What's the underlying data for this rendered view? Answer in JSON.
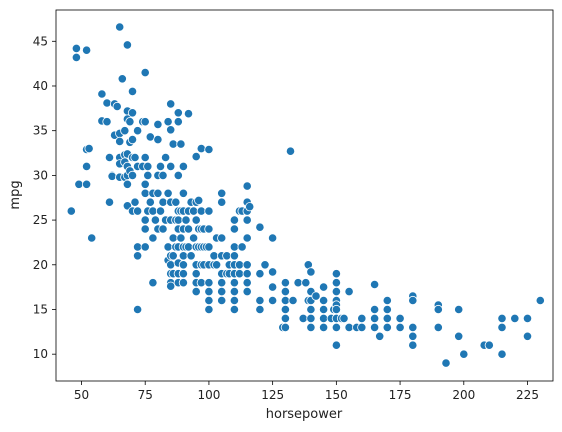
{
  "chart_data": {
    "type": "scatter",
    "title": "",
    "xlabel": "horsepower",
    "ylabel": "mpg",
    "xlim": [
      40,
      235
    ],
    "ylim": [
      7,
      48.5
    ],
    "xticks": [
      50,
      75,
      100,
      125,
      150,
      175,
      200,
      225
    ],
    "yticks": [
      10,
      15,
      20,
      25,
      30,
      35,
      40,
      45
    ],
    "grid": false,
    "point_color": "#1f77b4",
    "points": [
      [
        46,
        26
      ],
      [
        48,
        44.2
      ],
      [
        48,
        43.2
      ],
      [
        49,
        29
      ],
      [
        52,
        44
      ],
      [
        52,
        32.9
      ],
      [
        52,
        31
      ],
      [
        52,
        29
      ],
      [
        53,
        33
      ],
      [
        54,
        23
      ],
      [
        58,
        39.1
      ],
      [
        58,
        36.1
      ],
      [
        60,
        38.1
      ],
      [
        60,
        36
      ],
      [
        61,
        32
      ],
      [
        61,
        27
      ],
      [
        62,
        30
      ],
      [
        62,
        29.9
      ],
      [
        63,
        38
      ],
      [
        63,
        34.5
      ],
      [
        64,
        37.7
      ],
      [
        65,
        46.6
      ],
      [
        65,
        34.7
      ],
      [
        65,
        33.8
      ],
      [
        65,
        32
      ],
      [
        65,
        31.3
      ],
      [
        65,
        29.8
      ],
      [
        66,
        40.8
      ],
      [
        67,
        35
      ],
      [
        67,
        32.3
      ],
      [
        67,
        31.5
      ],
      [
        67,
        29.8
      ],
      [
        68,
        44.6
      ],
      [
        68,
        37.2
      ],
      [
        68,
        36.3
      ],
      [
        68,
        32.4
      ],
      [
        68,
        31
      ],
      [
        68,
        30
      ],
      [
        68,
        29
      ],
      [
        68,
        26.6
      ],
      [
        69,
        36
      ],
      [
        69,
        33.7
      ],
      [
        69,
        30.5
      ],
      [
        70,
        39.4
      ],
      [
        70,
        37
      ],
      [
        70,
        34
      ],
      [
        70,
        32
      ],
      [
        70,
        30
      ],
      [
        70,
        26
      ],
      [
        71,
        32
      ],
      [
        71,
        27
      ],
      [
        72,
        35
      ],
      [
        72,
        31
      ],
      [
        72,
        26
      ],
      [
        72,
        22
      ],
      [
        72,
        21
      ],
      [
        72,
        15
      ],
      [
        74,
        36
      ],
      [
        74,
        31
      ],
      [
        75,
        41.5
      ],
      [
        75,
        36
      ],
      [
        75,
        32
      ],
      [
        75,
        29
      ],
      [
        75,
        28
      ],
      [
        75,
        25
      ],
      [
        75,
        24
      ],
      [
        75,
        22
      ],
      [
        76,
        31
      ],
      [
        76,
        30
      ],
      [
        76,
        26
      ],
      [
        77,
        34.3
      ],
      [
        77,
        27
      ],
      [
        78,
        28
      ],
      [
        78,
        26
      ],
      [
        78,
        23
      ],
      [
        78,
        18
      ],
      [
        79,
        25
      ],
      [
        80,
        35.7
      ],
      [
        80,
        34
      ],
      [
        80,
        30
      ],
      [
        80,
        28
      ],
      [
        80,
        24
      ],
      [
        81,
        31
      ],
      [
        81,
        26
      ],
      [
        82,
        30
      ],
      [
        82,
        27
      ],
      [
        82,
        24
      ],
      [
        83,
        32
      ],
      [
        83,
        25
      ],
      [
        84,
        36
      ],
      [
        84,
        28
      ],
      [
        84,
        22
      ],
      [
        84,
        20.5
      ],
      [
        85,
        38
      ],
      [
        85,
        35.1
      ],
      [
        85,
        31
      ],
      [
        85,
        27
      ],
      [
        85,
        25
      ],
      [
        85,
        21
      ],
      [
        85,
        20
      ],
      [
        85,
        19
      ],
      [
        85,
        18
      ],
      [
        85,
        17.6
      ],
      [
        86,
        33.5
      ],
      [
        86,
        23
      ],
      [
        86,
        21
      ],
      [
        86,
        19
      ],
      [
        87,
        27
      ],
      [
        87,
        25
      ],
      [
        87,
        22
      ],
      [
        88,
        37
      ],
      [
        88,
        36
      ],
      [
        88,
        30
      ],
      [
        88,
        26
      ],
      [
        88,
        25
      ],
      [
        88,
        24
      ],
      [
        88,
        22
      ],
      [
        88,
        20.2
      ],
      [
        88,
        19
      ],
      [
        88,
        18
      ],
      [
        89,
        33.5
      ],
      [
        89,
        26
      ],
      [
        89,
        23
      ],
      [
        90,
        31
      ],
      [
        90,
        28
      ],
      [
        90,
        26
      ],
      [
        90,
        24
      ],
      [
        90,
        22
      ],
      [
        90,
        21
      ],
      [
        90,
        20
      ],
      [
        90,
        19
      ],
      [
        90,
        18
      ],
      [
        91,
        25
      ],
      [
        91,
        22
      ],
      [
        92,
        36.9
      ],
      [
        92,
        26
      ],
      [
        92,
        24
      ],
      [
        92,
        22
      ],
      [
        93,
        27
      ],
      [
        93,
        21
      ],
      [
        94,
        26
      ],
      [
        94,
        23
      ],
      [
        95,
        32.1
      ],
      [
        95,
        27
      ],
      [
        95,
        25
      ],
      [
        95,
        22
      ],
      [
        95,
        20
      ],
      [
        95,
        19
      ],
      [
        95,
        18
      ],
      [
        95,
        17
      ],
      [
        96,
        27.2
      ],
      [
        96,
        24
      ],
      [
        96,
        22
      ],
      [
        97,
        33
      ],
      [
        97,
        26
      ],
      [
        97,
        24
      ],
      [
        97,
        22
      ],
      [
        97,
        20
      ],
      [
        97,
        18
      ],
      [
        98,
        24
      ],
      [
        98,
        22
      ],
      [
        98,
        20
      ],
      [
        99,
        22
      ],
      [
        100,
        32.9
      ],
      [
        100,
        26
      ],
      [
        100,
        24
      ],
      [
        100,
        22
      ],
      [
        100,
        20
      ],
      [
        100,
        18
      ],
      [
        100,
        17
      ],
      [
        100,
        16
      ],
      [
        100,
        15
      ],
      [
        102,
        21
      ],
      [
        102,
        20
      ],
      [
        103,
        23
      ],
      [
        103,
        20
      ],
      [
        105,
        28
      ],
      [
        105,
        27
      ],
      [
        105,
        23
      ],
      [
        105,
        21
      ],
      [
        105,
        19
      ],
      [
        105,
        18
      ],
      [
        105,
        17
      ],
      [
        105,
        16
      ],
      [
        107,
        21
      ],
      [
        107,
        19
      ],
      [
        108,
        20
      ],
      [
        108,
        19
      ],
      [
        110,
        25
      ],
      [
        110,
        24
      ],
      [
        110,
        22
      ],
      [
        110,
        21
      ],
      [
        110,
        20
      ],
      [
        110,
        19
      ],
      [
        110,
        18
      ],
      [
        110,
        17
      ],
      [
        110,
        16
      ],
      [
        110,
        15
      ],
      [
        112,
        26
      ],
      [
        112,
        20
      ],
      [
        112,
        19
      ],
      [
        113,
        26
      ],
      [
        113,
        22
      ],
      [
        115,
        27
      ],
      [
        115,
        28.8
      ],
      [
        115,
        26
      ],
      [
        115,
        25
      ],
      [
        115,
        23
      ],
      [
        115,
        20
      ],
      [
        115,
        19
      ],
      [
        115,
        18
      ],
      [
        115,
        17
      ],
      [
        116,
        26.5
      ],
      [
        120,
        24.2
      ],
      [
        120,
        19
      ],
      [
        120,
        16
      ],
      [
        120,
        15
      ],
      [
        122,
        20
      ],
      [
        125,
        23
      ],
      [
        125,
        19.2
      ],
      [
        125,
        17.5
      ],
      [
        125,
        16
      ],
      [
        129,
        13
      ],
      [
        130,
        18
      ],
      [
        130,
        17
      ],
      [
        130,
        16
      ],
      [
        130,
        15
      ],
      [
        130,
        14
      ],
      [
        130,
        13
      ],
      [
        132,
        32.7
      ],
      [
        133,
        16
      ],
      [
        135,
        18
      ],
      [
        137,
        14
      ],
      [
        138,
        18
      ],
      [
        139,
        16
      ],
      [
        139,
        20
      ],
      [
        140,
        19.2
      ],
      [
        140,
        17
      ],
      [
        140,
        16
      ],
      [
        140,
        15
      ],
      [
        140,
        14
      ],
      [
        140,
        13
      ],
      [
        142,
        16.5
      ],
      [
        145,
        17.5
      ],
      [
        145,
        16
      ],
      [
        145,
        15
      ],
      [
        145,
        14
      ],
      [
        145,
        13
      ],
      [
        148,
        14
      ],
      [
        149,
        15
      ],
      [
        150,
        19
      ],
      [
        150,
        18
      ],
      [
        150,
        17
      ],
      [
        150,
        16
      ],
      [
        150,
        15.5
      ],
      [
        150,
        15
      ],
      [
        150,
        14
      ],
      [
        150,
        13
      ],
      [
        150,
        11
      ],
      [
        152,
        14
      ],
      [
        153,
        14
      ],
      [
        155,
        13
      ],
      [
        155,
        17
      ],
      [
        158,
        13
      ],
      [
        160,
        13
      ],
      [
        160,
        14
      ],
      [
        165,
        17.8
      ],
      [
        165,
        15
      ],
      [
        165,
        14
      ],
      [
        165,
        13
      ],
      [
        167,
        12
      ],
      [
        170,
        16
      ],
      [
        170,
        15
      ],
      [
        170,
        14
      ],
      [
        170,
        13
      ],
      [
        175,
        14
      ],
      [
        175,
        13
      ],
      [
        180,
        16.5
      ],
      [
        180,
        16
      ],
      [
        180,
        13
      ],
      [
        180,
        12
      ],
      [
        180,
        11
      ],
      [
        190,
        15.5
      ],
      [
        190,
        15
      ],
      [
        190,
        13
      ],
      [
        193,
        9
      ],
      [
        198,
        15
      ],
      [
        198,
        12
      ],
      [
        200,
        10
      ],
      [
        208,
        11
      ],
      [
        210,
        11
      ],
      [
        215,
        14
      ],
      [
        215,
        13
      ],
      [
        215,
        10
      ],
      [
        220,
        14
      ],
      [
        225,
        14
      ],
      [
        225,
        12
      ],
      [
        230,
        16
      ]
    ]
  }
}
